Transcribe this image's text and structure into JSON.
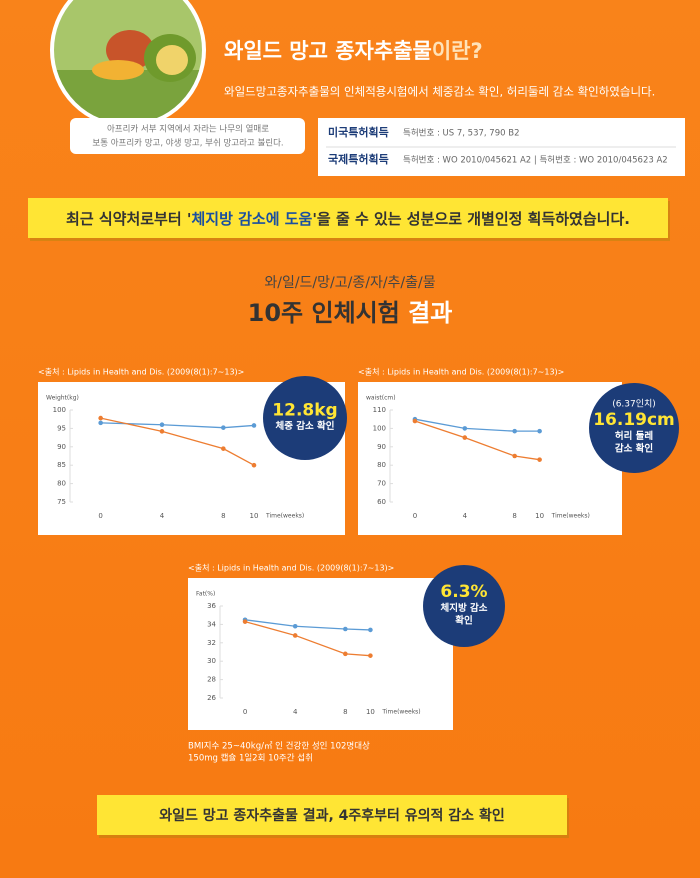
{
  "header": {
    "title": "와일드 망고 종자추출물",
    "title_suffix": "이란?",
    "description": "와일드망고종자추출물의 인체적용시험에서 체중감소 확인, 허리둘레 감소 확인하였습니다.",
    "image_caption": [
      "아프리카 서부 지역에서 자라는 나무의 열매로",
      "보통 아프리카 망고, 야생 망고, 부쉬 망고라고 불린다."
    ]
  },
  "patents": [
    {
      "label": "미국특허획득",
      "number": "특허번호 : US 7, 537, 790 B2"
    },
    {
      "label": "국제특허획득",
      "number": "특허번호 : WO 2010/045621 A2  |  특허번호 : WO 2010/045623 A2"
    }
  ],
  "banner": {
    "before": "최근 식약처로부터 '",
    "highlight": "체지방 감소에 도움",
    "after": "'을 줄 수 있는 성분으로 개별인정 획득하였습니다."
  },
  "section": {
    "kicker": "와/일/드/망/고/종/자/추/출/물",
    "title": "10주 인체시험",
    "title_accent": "결과"
  },
  "chart_data": [
    {
      "type": "line",
      "source": "<출처 : Lipids in Health and Dis. (2009(8(1):7~13)>",
      "y_label": "Weight(kg)",
      "x_label": "Time(weeks)",
      "x": [
        0,
        4,
        8,
        10
      ],
      "xticks": [
        0,
        4,
        8,
        10
      ],
      "xlim": [
        -2,
        13
      ],
      "ylim": [
        75,
        100
      ],
      "yticks": [
        75,
        80,
        85,
        90,
        95,
        100
      ],
      "series": [
        {
          "color": "#5b9bd5",
          "values": [
            96.5,
            96,
            95.2,
            95.8
          ]
        },
        {
          "color": "#ed7d31",
          "values": [
            97.8,
            94.2,
            89.5,
            85
          ]
        }
      ],
      "callout": {
        "highlight": "12.8kg",
        "detail": [
          "체중 감소 확인"
        ]
      }
    },
    {
      "type": "line",
      "source": "<출처 : Lipids in Health and Dis. (2009(8(1):7~13)>",
      "y_label": "waist(cm)",
      "x_label": "Time(weeks)",
      "x": [
        0,
        4,
        8,
        10
      ],
      "xticks": [
        0,
        4,
        8,
        10
      ],
      "xlim": [
        -2,
        13
      ],
      "ylim": [
        60,
        110
      ],
      "yticks": [
        60,
        70,
        80,
        90,
        100,
        110
      ],
      "series": [
        {
          "color": "#5b9bd5",
          "values": [
            105,
            100,
            98.5,
            98.5
          ]
        },
        {
          "color": "#ed7d31",
          "values": [
            104,
            95,
            85,
            83
          ]
        }
      ],
      "callout": {
        "note": "(6.37인치)",
        "highlight": "16.19cm",
        "detail": [
          "허리 둘레",
          "감소 확인"
        ]
      }
    },
    {
      "type": "line",
      "source": "<출처 : Lipids in Health and Dis. (2009(8(1):7~13)>",
      "y_label": "Fat(%)",
      "x_label": "Time(weeks)",
      "x": [
        0,
        4,
        8,
        10
      ],
      "xticks": [
        0,
        4,
        8,
        10
      ],
      "xlim": [
        -2,
        13
      ],
      "ylim": [
        26,
        36
      ],
      "yticks": [
        26,
        28,
        30,
        32,
        34,
        36
      ],
      "series": [
        {
          "color": "#5b9bd5",
          "values": [
            34.5,
            33.8,
            33.5,
            33.4
          ]
        },
        {
          "color": "#ed7d31",
          "values": [
            34.3,
            32.8,
            30.8,
            30.6
          ]
        }
      ],
      "callout": {
        "highlight": "6.3%",
        "detail": [
          "체지방 감소",
          "확인"
        ]
      }
    }
  ],
  "notes": [
    "BMI지수 25~40kg/㎡ 인 건강한 성인 102명대상",
    "150mg 캡슐 1일2회 10주간 섭취"
  ],
  "footer_banner": "와일드 망고 종자추출물 결과, 4주후부터 유의적 감소 확인"
}
